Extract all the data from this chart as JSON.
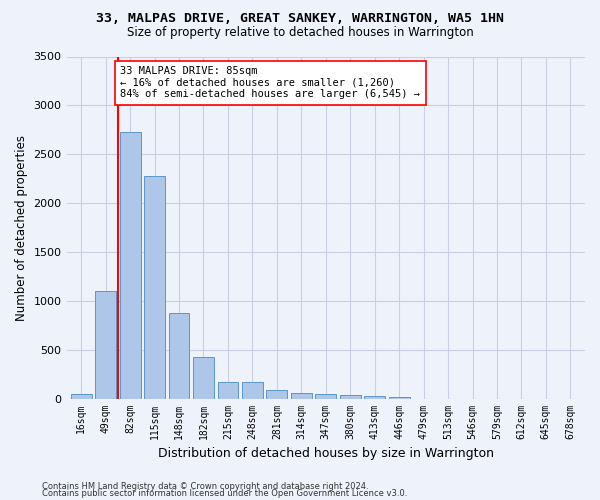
{
  "title": "33, MALPAS DRIVE, GREAT SANKEY, WARRINGTON, WA5 1HN",
  "subtitle": "Size of property relative to detached houses in Warrington",
  "xlabel": "Distribution of detached houses by size in Warrington",
  "ylabel": "Number of detached properties",
  "categories": [
    "16sqm",
    "49sqm",
    "82sqm",
    "115sqm",
    "148sqm",
    "182sqm",
    "215sqm",
    "248sqm",
    "281sqm",
    "314sqm",
    "347sqm",
    "380sqm",
    "413sqm",
    "446sqm",
    "479sqm",
    "513sqm",
    "546sqm",
    "579sqm",
    "612sqm",
    "645sqm",
    "678sqm"
  ],
  "values": [
    50,
    1100,
    2730,
    2280,
    880,
    430,
    170,
    165,
    90,
    60,
    50,
    35,
    25,
    20,
    0,
    0,
    0,
    0,
    0,
    0,
    0
  ],
  "bar_color": "#aec6e8",
  "bar_edge_color": "#5a96c8",
  "red_line_x": 1.5,
  "property_label": "33 MALPAS DRIVE: 85sqm",
  "annotation_line1": "← 16% of detached houses are smaller (1,260)",
  "annotation_line2": "84% of semi-detached houses are larger (6,545) →",
  "ylim": [
    0,
    3500
  ],
  "yticks": [
    0,
    500,
    1000,
    1500,
    2000,
    2500,
    3000,
    3500
  ],
  "footer1": "Contains HM Land Registry data © Crown copyright and database right 2024.",
  "footer2": "Contains public sector information licensed under the Open Government Licence v3.0.",
  "bg_color": "#eef2fb",
  "grid_color": "#c8cfe0"
}
